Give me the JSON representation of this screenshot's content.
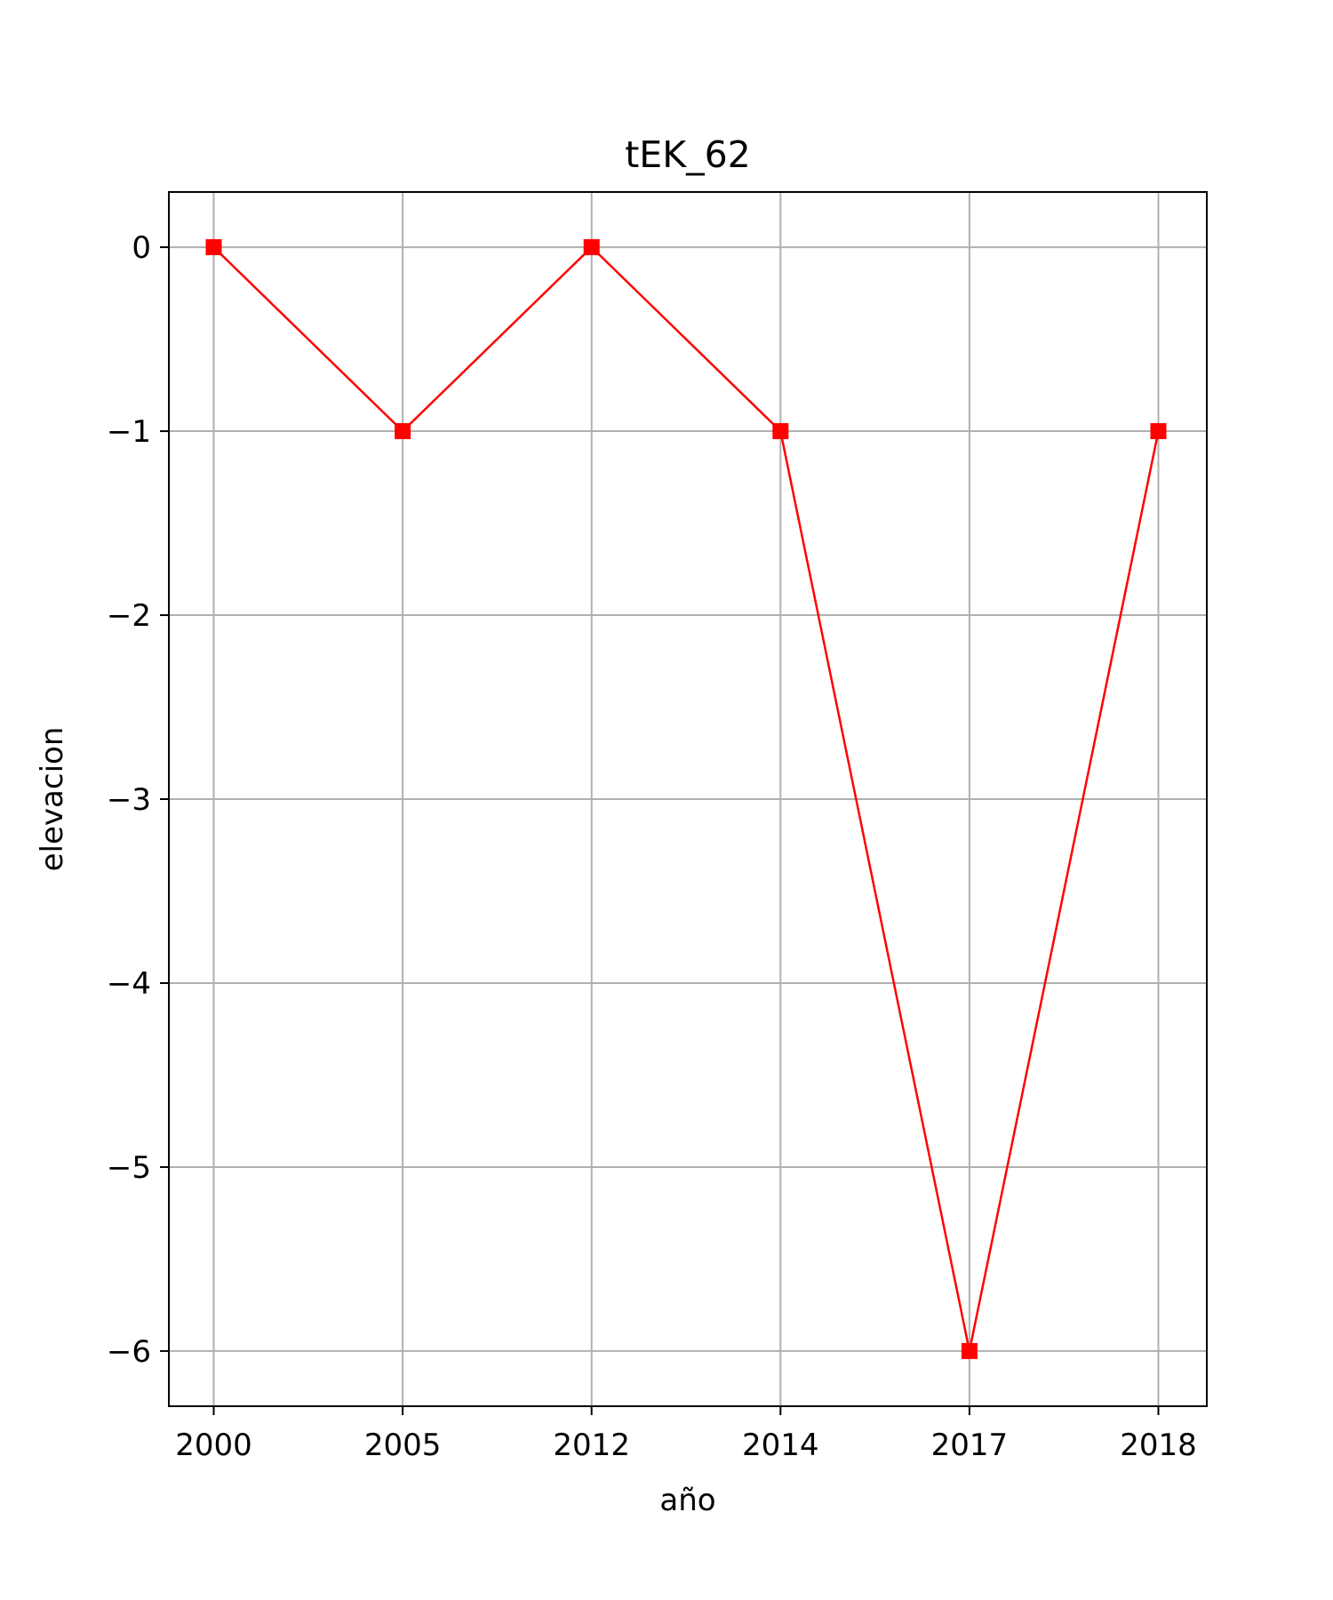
{
  "chart_data": {
    "type": "line",
    "title": "tEK_62",
    "xlabel": "año",
    "ylabel": "elevacion",
    "categories": [
      "2000",
      "2005",
      "2012",
      "2014",
      "2017",
      "2018"
    ],
    "series": [
      {
        "values": [
          0,
          -1,
          0,
          -1,
          -6,
          -1
        ],
        "color": "#ff0000",
        "marker": "square"
      }
    ],
    "yticks": [
      0,
      -1,
      -2,
      -3,
      -4,
      -5,
      -6
    ],
    "ytick_labels": [
      "0",
      "−1",
      "−2",
      "−3",
      "−4",
      "−5",
      "−6"
    ],
    "ylim": [
      -6.3,
      0.3
    ],
    "grid": true,
    "grid_color": "#b0b0b0"
  }
}
